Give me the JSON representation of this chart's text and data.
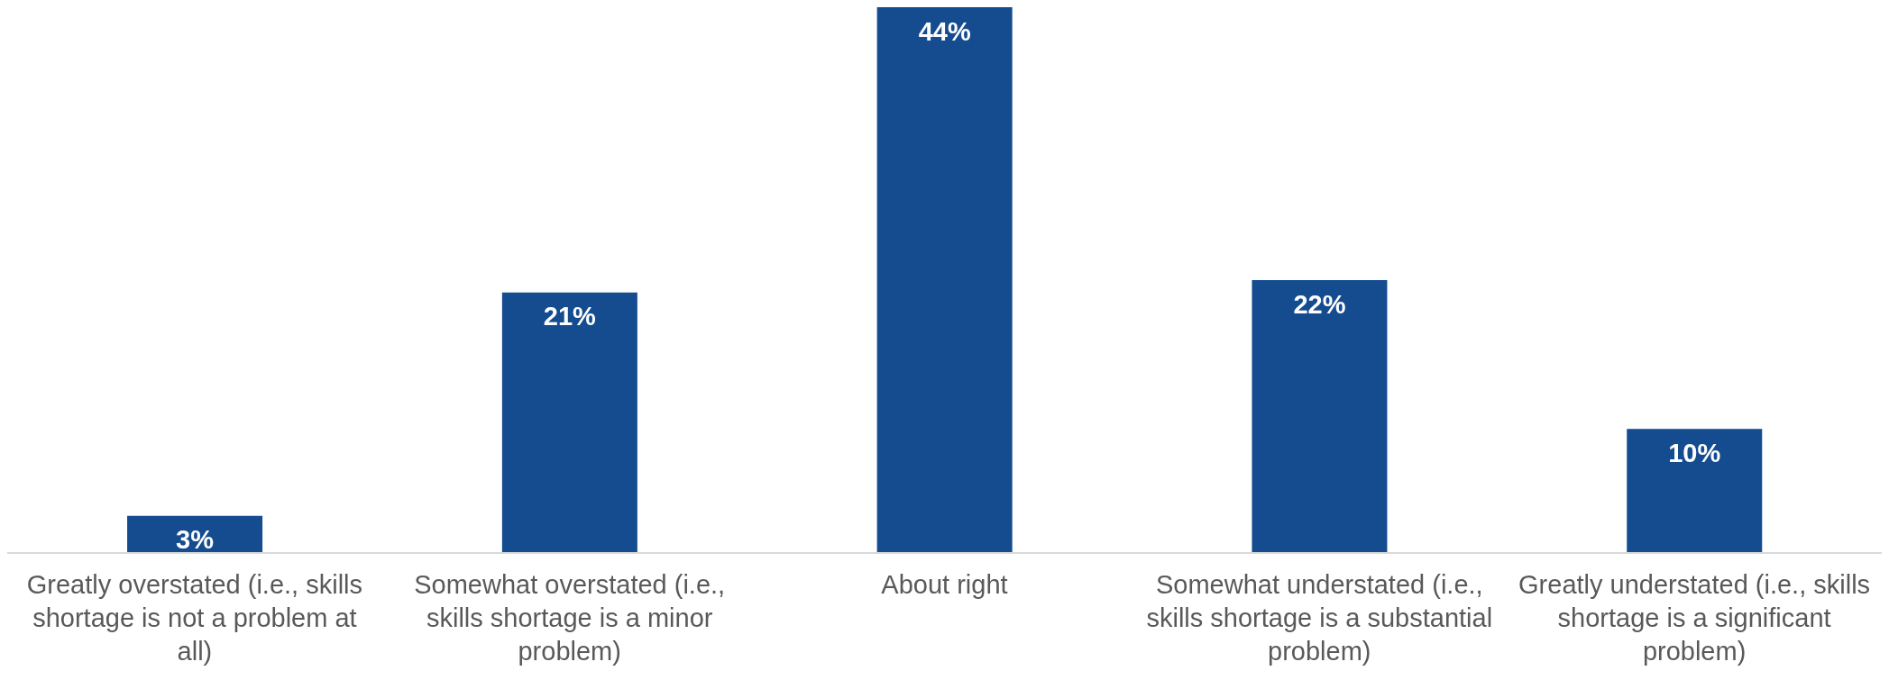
{
  "chart_data": {
    "type": "bar",
    "categories": [
      "Greatly overstated (i.e., skills shortage is not a problem at all)",
      "Somewhat overstated (i.e., skills shortage is a minor problem)",
      "About right",
      "Somewhat understated (i.e., skills shortage is a substantial problem)",
      "Greatly understated (i.e., skills shortage is a significant problem)"
    ],
    "values": [
      3,
      21,
      44,
      22,
      10
    ],
    "value_labels": [
      "3%",
      "21%",
      "44%",
      "22%",
      "10%"
    ],
    "color": "#144c8f",
    "grid": false
  }
}
